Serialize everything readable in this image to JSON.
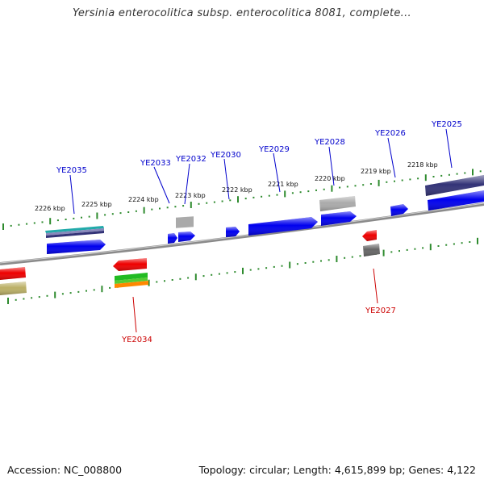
{
  "title": "Yersinia enterocolitica subsp. enterocolitica 8081, complete...",
  "accession_text": "Accession: NC_008800",
  "summary_text": "Topology: circular; Length: 4,615,899 bp; Genes: 4,122",
  "colors": {
    "backbone": "#8a8a8a",
    "tick": "#2e8b2e",
    "forward_label": "#0000cc",
    "reverse_label": "#cc0000",
    "blue": "#0000ee",
    "red": "#ee0000",
    "gray": "#aaaaaa",
    "dark_gray": "#666666",
    "navy": "#333377",
    "teal": "#22aaaa",
    "green": "#22bb22",
    "orange": "#ff8800",
    "olive": "#bbb066"
  },
  "scale_labels": [
    "2226 kbp",
    "2225 kbp",
    "2224 kbp",
    "2223 kbp",
    "2222 kbp",
    "2221 kbp",
    "2220 kbp",
    "2219 kbp",
    "2218 kbp"
  ],
  "forward_gene_labels": [
    "YE2035",
    "YE2033",
    "YE2032",
    "YE2030",
    "YE2029",
    "YE2028",
    "YE2026",
    "YE2025"
  ],
  "reverse_gene_labels": [
    "YE2034",
    "YE2027"
  ]
}
